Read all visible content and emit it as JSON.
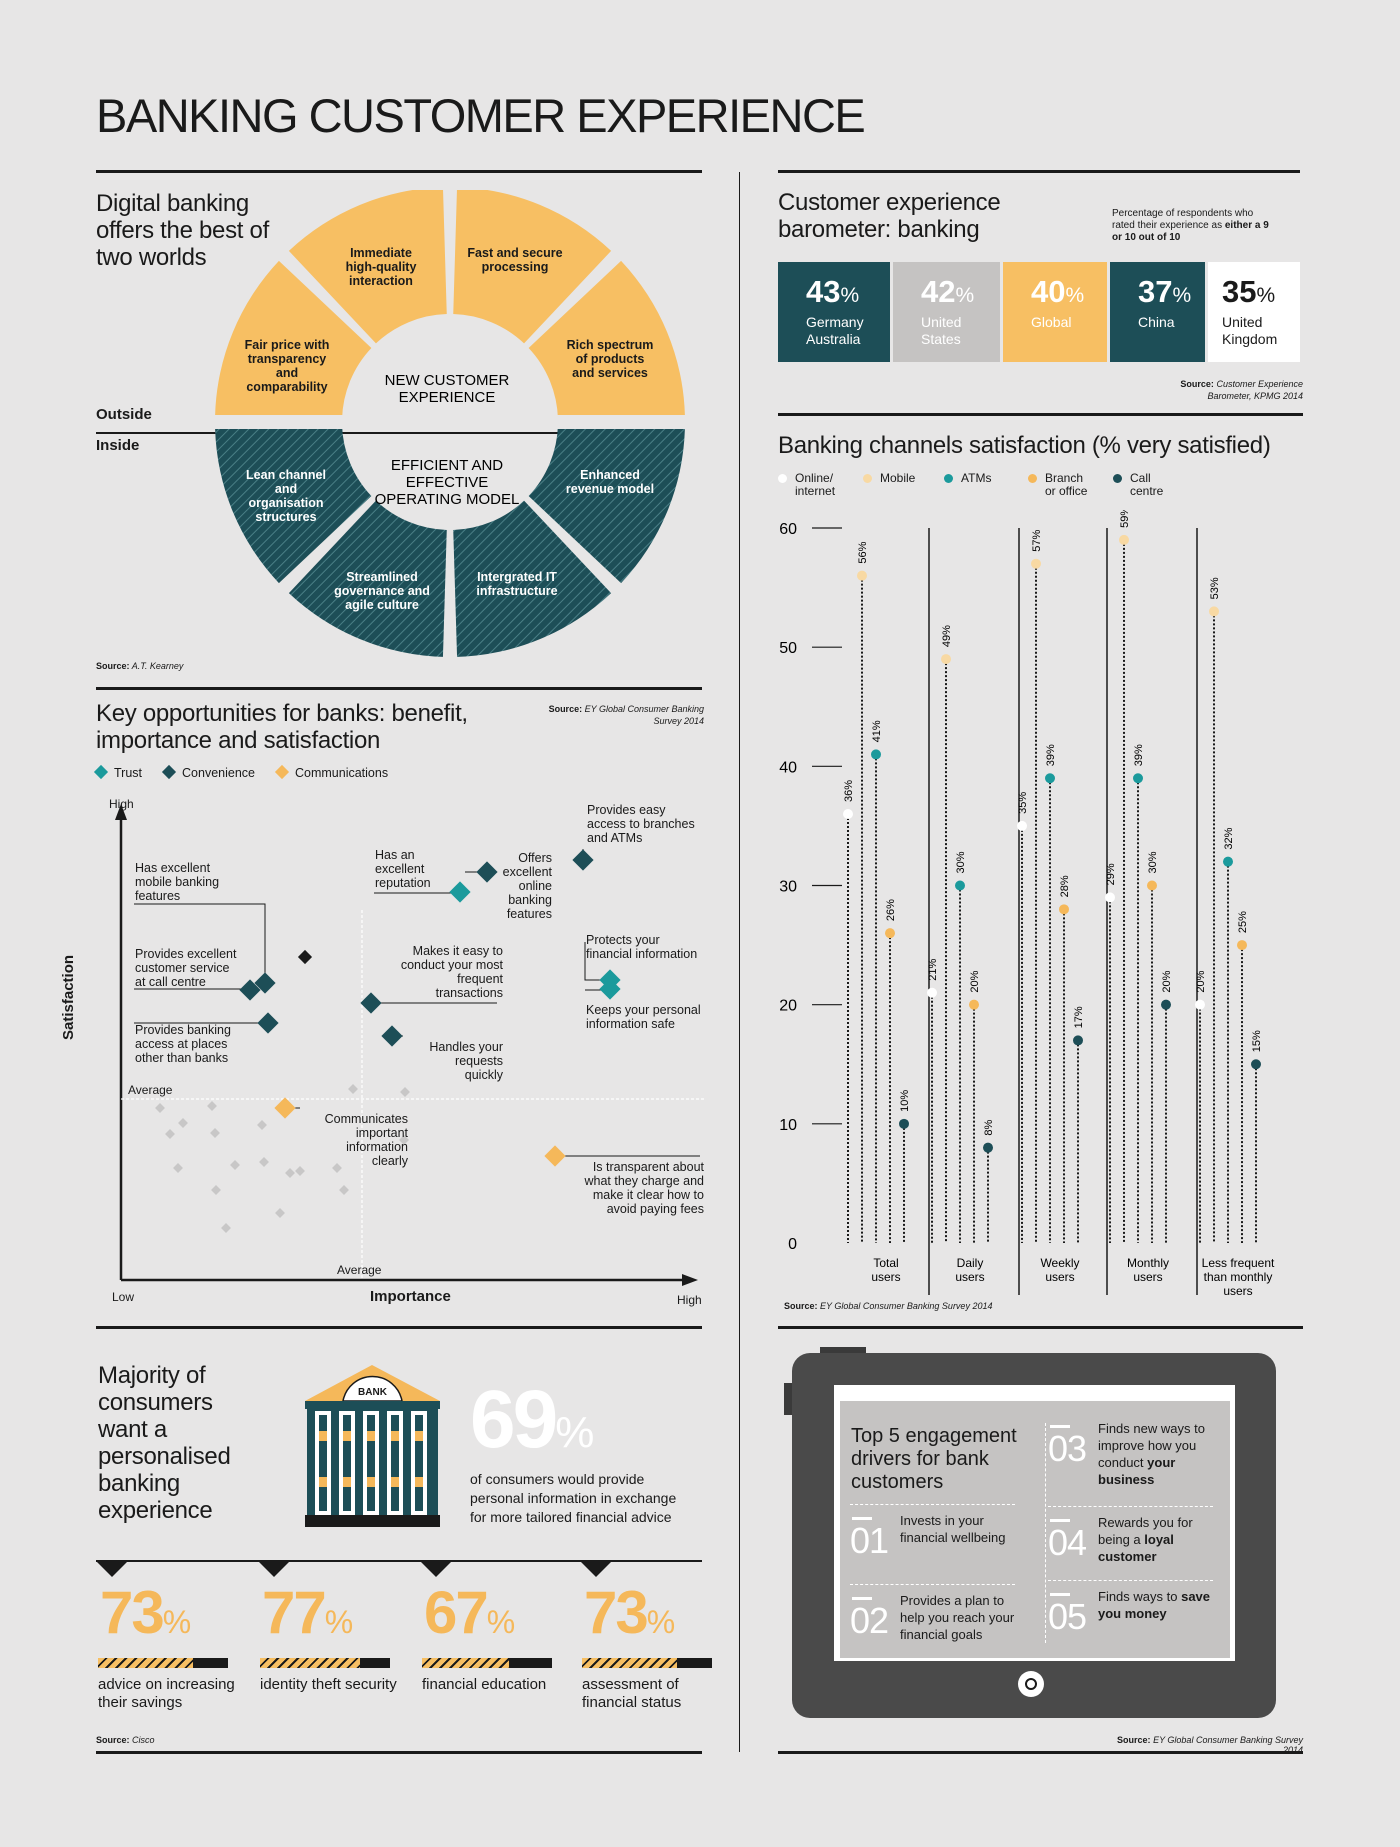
{
  "page_title": "BANKING CUSTOMER EXPERIENCE",
  "digital": {
    "title": "Digital banking offers the best of two worlds",
    "outside_label": "Outside",
    "inside_label": "Inside",
    "center_top": "NEW CUSTOMER EXPERIENCE",
    "center_bottom": "EFFICIENT AND EFFECTIVE OPERATING MODEL",
    "outer_segments": [
      "Fair price with transparency and comparability",
      "Immediate high-quality interaction",
      "Fast and secure processing",
      "Rich spectrum of products and services"
    ],
    "inner_segments": [
      "Lean channel and organisation structures",
      "Streamlined governance and agile culture",
      "Intergrated IT infrastructure",
      "Enhanced revenue model"
    ],
    "source_label": "Source:",
    "source": "A.T. Kearney",
    "colors": {
      "outer": "#f7bf63",
      "inner": "#1d4e57"
    }
  },
  "barometer": {
    "title": "Customer experience barometer: banking",
    "note": "Percentage of respondents who rated their experience as",
    "note_bold": "either a 9 or 10 out of 10",
    "items": [
      {
        "value": "43",
        "label": "Germany Australia",
        "color": "#1d4e57"
      },
      {
        "value": "42",
        "label": "United States",
        "color": "#c5c3c2"
      },
      {
        "value": "40",
        "label": "Global",
        "color": "#f7bf63"
      },
      {
        "value": "37",
        "label": "China",
        "color": "#1d4e57"
      },
      {
        "value": "35",
        "label": "United Kingdom",
        "color": "#ffffff"
      }
    ],
    "source_label": "Source:",
    "source": "Customer Experience Barometer, KPMG 2014"
  },
  "opportunities": {
    "title": "Key opportunities for banks: benefit, importance and satisfaction",
    "source_label": "Source:",
    "source": "EY Global Consumer Banking Survey 2014",
    "legend": [
      "Trust",
      "Convenience",
      "Communications"
    ],
    "legend_colors": [
      "#1b9a9c",
      "#1d4e57",
      "#f5b85a"
    ],
    "axis_high": "High",
    "axis_low": "Low",
    "axis_average_y": "Average",
    "axis_average_x": "Average",
    "xlabel": "Importance",
    "ylabel": "Satisfaction",
    "x_high": "High",
    "labels": {
      "mobile": "Has excellent mobile banking features",
      "reputation": "Has an excellent reputation",
      "online": "Offers excellent online banking features",
      "branches": "Provides easy access to branches and ATMs",
      "callcentre": "Provides excellent customer service at call centre",
      "transactions": "Makes it easy to conduct your most frequent transactions",
      "protects": "Protects your financial information",
      "keeps": "Keeps your personal information safe",
      "places": "Provides banking access at places other than banks",
      "handles": "Handles your requests quickly",
      "communicates": "Communicates important information clearly",
      "transparent": "Is transparent about what they charge and make it clear how to avoid  paying fees"
    }
  },
  "personal": {
    "title": "Majority of consumers want a personalised banking experience",
    "bank_sign": "BANK",
    "big_value": "69",
    "big_unit": "%",
    "big_text": "of consumers would provide personal information in exchange for more tailored financial advice",
    "stats": [
      {
        "value": "73",
        "label": "advice on increasing their savings"
      },
      {
        "value": "77",
        "label": "identity theft security"
      },
      {
        "value": "67",
        "label": "financial education"
      },
      {
        "value": "73",
        "label": "assessment of financial status"
      }
    ],
    "source_label": "Source:",
    "source": "Cisco"
  },
  "channels": {
    "title": "Banking channels satisfaction (% very satisfied)",
    "source_label": "Source:",
    "source": "EY Global Consumer Banking Survey 2014"
  },
  "chart_data": {
    "type": "scatter",
    "title": "Banking channels satisfaction (% very satisfied)",
    "categories": [
      "Total users",
      "Daily users",
      "Weekly users",
      "Monthly users",
      "Less frequent than monthly users"
    ],
    "ylim": [
      0,
      60
    ],
    "yticks": [
      "0",
      "10",
      "20",
      "30",
      "40",
      "50",
      "60"
    ],
    "series": [
      {
        "name": "Online/ internet",
        "color": "#ffffff",
        "values": [
          36,
          21,
          35,
          29,
          20
        ]
      },
      {
        "name": "Mobile",
        "color": "#f8d9a3",
        "values": [
          56,
          49,
          57,
          59,
          53
        ]
      },
      {
        "name": "ATMs",
        "color": "#1b9a9c",
        "values": [
          41,
          30,
          39,
          39,
          32
        ]
      },
      {
        "name": "Branch or office",
        "color": "#f5b85a",
        "values": [
          26,
          20,
          28,
          30,
          25
        ]
      },
      {
        "name": "Call centre",
        "color": "#1d4e57",
        "values": [
          10,
          8,
          17,
          20,
          15
        ]
      }
    ]
  },
  "engagement": {
    "title": "Top 5 engagement drivers for bank customers",
    "items": [
      {
        "num": "01",
        "text": "Invests in your financial wellbeing"
      },
      {
        "num": "02",
        "text": "Provides a plan to help you reach your financial goals"
      },
      {
        "num": "03",
        "text": "Finds new ways to improve how you conduct your business"
      },
      {
        "num": "04",
        "text": "Rewards you for being a loyal customer"
      },
      {
        "num": "05",
        "text": "Finds ways to save you money"
      }
    ],
    "source_label": "Source:",
    "source": "EY Global Consumer Banking Survey 2014"
  }
}
